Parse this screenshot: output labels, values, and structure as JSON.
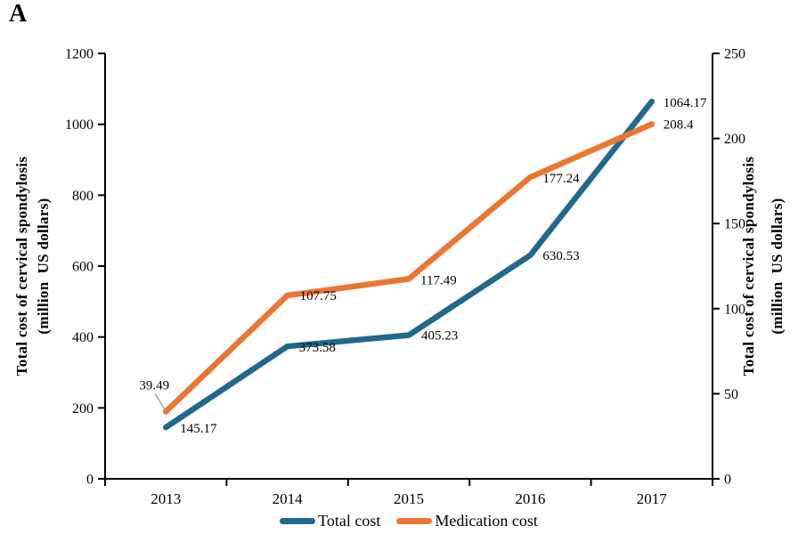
{
  "panel_label": "A",
  "chart_data": {
    "type": "line",
    "title": "",
    "xlabel": "",
    "x_categories": [
      "2013",
      "2014",
      "2015",
      "2016",
      "2017"
    ],
    "series": [
      {
        "name": "Total cost",
        "axis": "left",
        "color": "#20688C",
        "values": [
          145.17,
          373.58,
          405.23,
          630.53,
          1064.17
        ],
        "labels": [
          "145.17",
          "373.58",
          "405.23",
          "630.53",
          "1064.17"
        ]
      },
      {
        "name": "Medication cost",
        "axis": "right",
        "color": "#E97732",
        "values": [
          39.49,
          107.75,
          117.49,
          177.24,
          208.4
        ],
        "labels": [
          "39.49",
          "107.75",
          "117.49",
          "177.24",
          "208.4"
        ]
      }
    ],
    "left_axis": {
      "title_line1": "Total cost of cervical spondylosis",
      "title_line2": "(million  US dollars)",
      "ticks": [
        0,
        200,
        400,
        600,
        800,
        1000,
        1200
      ],
      "range": [
        0,
        1200
      ]
    },
    "right_axis": {
      "title_line1": "Total cost of cervical spondylosis",
      "title_line2": "(million  US dollars)",
      "ticks": [
        0,
        50,
        100,
        150,
        200,
        250
      ],
      "range": [
        0,
        250
      ]
    },
    "grid": false,
    "legend_position": "bottom",
    "leader_line_color": "#a6a6a6",
    "axis_color": "#000000"
  }
}
